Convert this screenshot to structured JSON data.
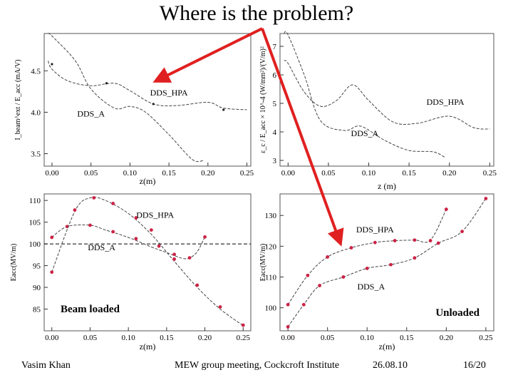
{
  "slide": {
    "title": "Where is the problem?",
    "footer": {
      "author": "Vasim Khan",
      "event": "MEW group meeting, Cockcroft Institute",
      "date": "26.08.10",
      "page": "16/20"
    }
  },
  "colors": {
    "curve": "#444444",
    "points": "#cc2244",
    "arrow": "#e02020",
    "ref_line": "#000000"
  },
  "chart_data": [
    {
      "id": "top-left",
      "type": "line",
      "xlabel": "z(m)",
      "ylabel": "I_beam^ext / E_acc (mA/V)",
      "xlim": [
        -0.01,
        0.255
      ],
      "ylim": [
        3.35,
        4.95
      ],
      "xticks": [
        0.0,
        0.05,
        0.1,
        0.15,
        0.2,
        0.25
      ],
      "xtick_labels": [
        "0.00",
        "0.05",
        "0.10",
        "0.15",
        "0.20",
        "0.25"
      ],
      "yticks": [
        3.5,
        4.0,
        4.5
      ],
      "ytick_labels": [
        "3.5",
        "4.0",
        "4.5"
      ],
      "annotations": [
        {
          "text": "DDS_HPA",
          "x": 0.15,
          "y": 4.2
        },
        {
          "text": "DDS_A",
          "x": 0.05,
          "y": 3.95
        }
      ],
      "series": [
        {
          "name": "DDS_HPA",
          "x": [
            -0.005,
            0.0,
            0.02,
            0.05,
            0.08,
            0.1,
            0.13,
            0.16,
            0.2,
            0.22,
            0.25
          ],
          "y": [
            4.62,
            4.52,
            4.38,
            4.32,
            4.35,
            4.26,
            4.1,
            4.08,
            4.12,
            4.05,
            4.03
          ],
          "markers": [
            [
              0.0,
              4.58
            ],
            [
              0.07,
              4.35
            ],
            [
              0.13,
              4.1
            ],
            [
              0.22,
              4.03
            ]
          ]
        },
        {
          "name": "DDS_A",
          "x": [
            -0.005,
            0.0,
            0.03,
            0.05,
            0.08,
            0.1,
            0.12,
            0.15,
            0.18,
            0.195
          ],
          "y": [
            4.95,
            4.92,
            4.62,
            4.28,
            4.05,
            4.07,
            4.0,
            3.73,
            3.43,
            3.42
          ],
          "markers": []
        }
      ]
    },
    {
      "id": "top-right",
      "type": "line",
      "xlabel": "z (m)",
      "ylabel": "ε_c / E_acc × 10^-4 (W/mm²)/(V/m)²",
      "xlim": [
        -0.01,
        0.255
      ],
      "ylim": [
        2.8,
        7.45
      ],
      "xticks": [
        0.0,
        0.05,
        0.1,
        0.15,
        0.2,
        0.25
      ],
      "xtick_labels": [
        "0.00",
        "0.05",
        "0.10",
        "0.15",
        "0.20",
        "0.25"
      ],
      "yticks": [
        3,
        4,
        5,
        6,
        7
      ],
      "ytick_labels": [
        "3",
        "4",
        "5",
        "6",
        "7"
      ],
      "annotations": [
        {
          "text": "DDS_HPA",
          "x": 0.195,
          "y": 4.95
        },
        {
          "text": "DDS_A",
          "x": 0.095,
          "y": 3.85
        }
      ],
      "series": [
        {
          "name": "DDS_HPA",
          "x": [
            -0.005,
            0.0,
            0.02,
            0.04,
            0.06,
            0.08,
            0.1,
            0.13,
            0.16,
            0.2,
            0.23,
            0.25
          ],
          "y": [
            6.5,
            6.4,
            5.4,
            4.9,
            5.1,
            5.65,
            5.1,
            4.35,
            4.3,
            4.55,
            4.15,
            4.1
          ],
          "markers": []
        },
        {
          "name": "DDS_A",
          "x": [
            -0.005,
            0.0,
            0.02,
            0.04,
            0.07,
            0.09,
            0.12,
            0.15,
            0.18,
            0.195
          ],
          "y": [
            7.45,
            7.4,
            6.0,
            4.4,
            4.05,
            4.2,
            3.7,
            3.35,
            3.3,
            3.1
          ],
          "markers": []
        }
      ]
    },
    {
      "id": "bottom-left",
      "type": "line",
      "title": "Beam loaded",
      "xlabel": "z(m)",
      "ylabel": "Eacc(MV/m)",
      "xlim": [
        -0.01,
        0.26
      ],
      "ylim": [
        80,
        111.5
      ],
      "xticks": [
        0.0,
        0.05,
        0.1,
        0.15,
        0.2,
        0.25
      ],
      "xtick_labels": [
        "0.00",
        "0.05",
        "0.10",
        "0.15",
        "0.20",
        "0.25"
      ],
      "yticks": [
        85,
        90,
        95,
        100,
        105,
        110
      ],
      "ytick_labels": [
        "85",
        "90",
        "95",
        "100",
        "105",
        "110"
      ],
      "reference_line": 100,
      "annotations": [
        {
          "text": "DDS_HPA",
          "x": 0.135,
          "y": 106
        },
        {
          "text": "DDS_A",
          "x": 0.065,
          "y": 98.5
        }
      ],
      "series": [
        {
          "name": "DDS_HPA",
          "x": [
            0.0,
            0.02,
            0.05,
            0.07,
            0.1,
            0.13,
            0.15,
            0.17,
            0.18,
            0.19,
            0.2
          ],
          "y": [
            101.5,
            104.0,
            104.3,
            103.2,
            101.5,
            99.3,
            98.0,
            96.7,
            96.8,
            98.2,
            101.6
          ],
          "markers": [
            [
              0.0,
              101.5
            ],
            [
              0.02,
              104.0
            ],
            [
              0.05,
              104.3
            ],
            [
              0.08,
              102.8
            ],
            [
              0.11,
              101.2
            ],
            [
              0.14,
              99.5
            ],
            [
              0.16,
              97.6
            ],
            [
              0.18,
              96.8
            ],
            [
              0.2,
              101.6
            ]
          ]
        },
        {
          "name": "DDS_A",
          "x": [
            0.0,
            0.03,
            0.05,
            0.07,
            0.1,
            0.13,
            0.16,
            0.19,
            0.22,
            0.25
          ],
          "y": [
            93.5,
            107.5,
            110.6,
            110.0,
            107.0,
            102.2,
            96.0,
            90.0,
            85.0,
            81.2
          ],
          "markers": [
            [
              0.0,
              93.5
            ],
            [
              0.03,
              107.8
            ],
            [
              0.055,
              110.6
            ],
            [
              0.08,
              109.3
            ],
            [
              0.11,
              106.0
            ],
            [
              0.13,
              103.2
            ],
            [
              0.16,
              96.5
            ],
            [
              0.19,
              90.5
            ],
            [
              0.22,
              85.5
            ],
            [
              0.25,
              81.3
            ]
          ]
        }
      ]
    },
    {
      "id": "bottom-right",
      "type": "line",
      "title": "Unloaded",
      "xlabel": "z(m)",
      "ylabel": "Eacc(MV/m)",
      "xlim": [
        -0.01,
        0.26
      ],
      "ylim": [
        92.5,
        137
      ],
      "xticks": [
        0.0,
        0.05,
        0.1,
        0.15,
        0.2,
        0.25
      ],
      "xtick_labels": [
        "0.00",
        "0.05",
        "0.10",
        "0.15",
        "0.20",
        "0.25"
      ],
      "yticks": [
        100,
        110,
        120,
        130
      ],
      "ytick_labels": [
        "100",
        "110",
        "120",
        "130"
      ],
      "annotations": [
        {
          "text": "DDS_HPA",
          "x": 0.11,
          "y": 124.5
        },
        {
          "text": "DDS_A",
          "x": 0.105,
          "y": 106
        }
      ],
      "series": [
        {
          "name": "DDS_HPA",
          "x": [
            0.0,
            0.025,
            0.05,
            0.08,
            0.11,
            0.135,
            0.16,
            0.18,
            0.2
          ],
          "y": [
            101.0,
            110.5,
            116.5,
            119.5,
            121.2,
            121.8,
            122.0,
            122.0,
            132.0
          ],
          "markers": [
            [
              0.0,
              101.0
            ],
            [
              0.025,
              110.5
            ],
            [
              0.05,
              116.5
            ],
            [
              0.08,
              119.5
            ],
            [
              0.11,
              121.2
            ],
            [
              0.135,
              121.8
            ],
            [
              0.16,
              122.0
            ],
            [
              0.18,
              121.8
            ],
            [
              0.2,
              132.0
            ]
          ]
        },
        {
          "name": "DDS_A",
          "x": [
            0.0,
            0.02,
            0.04,
            0.07,
            0.1,
            0.13,
            0.16,
            0.19,
            0.22,
            0.25
          ],
          "y": [
            93.8,
            101.0,
            107.2,
            110.0,
            112.8,
            114.0,
            116.2,
            121.0,
            124.8,
            135.5
          ],
          "markers": [
            [
              0.0,
              93.8
            ],
            [
              0.02,
              101.0
            ],
            [
              0.04,
              107.2
            ],
            [
              0.07,
              110.0
            ],
            [
              0.1,
              112.8
            ],
            [
              0.13,
              114.0
            ],
            [
              0.16,
              116.2
            ],
            [
              0.19,
              121.0
            ],
            [
              0.22,
              124.8
            ],
            [
              0.25,
              135.5
            ]
          ]
        }
      ]
    }
  ]
}
